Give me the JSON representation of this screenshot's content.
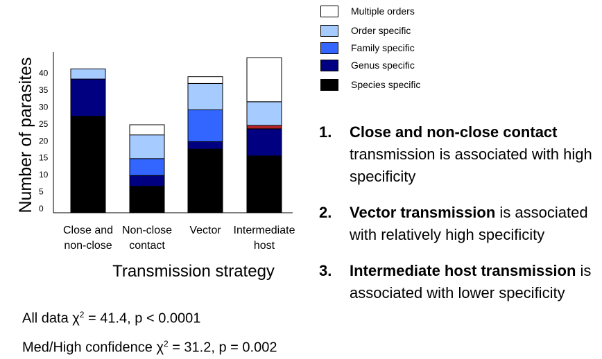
{
  "chart_data": {
    "type": "bar",
    "stacked": true,
    "categories": [
      [
        "Close and",
        "non-close"
      ],
      [
        "Non-close",
        "contact"
      ],
      [
        "Vector"
      ],
      [
        "Intermediate",
        "host"
      ]
    ],
    "series": [
      {
        "name": "Species specific",
        "color": "#000000",
        "values": [
          28.5,
          7.8,
          18.8,
          16.8
        ]
      },
      {
        "name": "Genus specific",
        "color": "#000080",
        "values": [
          11,
          3.2,
          2.2,
          8
        ]
      },
      {
        "name": "Family specific",
        "color": "#3366ff",
        "values": [
          0,
          5,
          9.4,
          0
        ]
      },
      {
        "name": "Order specific",
        "color": "#a6ccff",
        "values": [
          3,
          7,
          7.8,
          7
        ]
      },
      {
        "name": "Multiple orders",
        "color": "#ffffff",
        "values": [
          0,
          3,
          2,
          13
        ]
      }
    ],
    "special_segment": {
      "category_index": 3,
      "after_series": "Genus specific",
      "height": 1,
      "color": "#b22222"
    },
    "xlabel": "Transmission strategy",
    "ylabel": "Number of parasites",
    "yticks": [
      0,
      5,
      10,
      15,
      20,
      25,
      30,
      35,
      40
    ],
    "ylim": [
      0,
      47.5
    ],
    "legend_position": "top-right",
    "legend_order": [
      "Multiple orders",
      "Order specific",
      "Family specific",
      "Genus specific",
      "Species specific"
    ]
  },
  "stats": {
    "all_data": {
      "prefix": "All data χ",
      "sup": "2",
      "suffix": " = 41.4, p < 0.0001"
    },
    "med_high": {
      "prefix": "Med/High confidence χ",
      "sup": "2",
      "suffix": " = 31.2, p = 0.002"
    }
  },
  "points": [
    {
      "num": "1.",
      "bold": "Close and non-close contact",
      "rest": " transmission is associated with high specificity"
    },
    {
      "num": "2.",
      "bold": "Vector transmission",
      "rest": " is associated with relatively high specificity"
    },
    {
      "num": "3.",
      "bold": "Intermediate host transmission",
      "rest": " is associated with lower specificity"
    }
  ]
}
